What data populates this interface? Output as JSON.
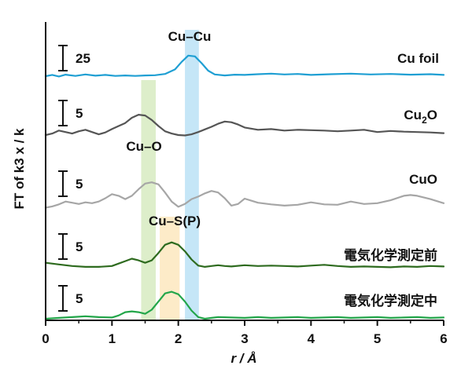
{
  "chart_data": {
    "type": "line",
    "xlabel": "r / Å",
    "ylabel": "FT of k3 x / k",
    "xlim": [
      0,
      6
    ],
    "x_ticks": [
      "0",
      "1",
      "2",
      "3",
      "4",
      "5",
      "6"
    ],
    "bands": [
      {
        "label": "Cu–O",
        "range": [
          1.44,
          1.66
        ],
        "color": "#d9ecc4"
      },
      {
        "label": "Cu–Cu",
        "range": [
          2.1,
          2.31
        ],
        "color": "#bfe3f6"
      },
      {
        "label": "Cu–S(P)",
        "range": [
          1.72,
          2.02
        ],
        "color": "#fde9c2"
      }
    ],
    "series": [
      {
        "name": "Cu foil",
        "color": "#1f9fd3",
        "scale_bar": "25",
        "x": [
          0.0,
          0.1,
          0.2,
          0.3,
          0.45,
          0.6,
          0.75,
          0.9,
          1.05,
          1.2,
          1.35,
          1.5,
          1.65,
          1.8,
          1.95,
          2.05,
          2.15,
          2.25,
          2.35,
          2.45,
          2.55,
          2.7,
          2.85,
          3.0,
          3.2,
          3.4,
          3.6,
          3.8,
          4.0,
          4.3,
          4.6,
          4.9,
          5.2,
          5.5,
          5.8,
          6.0
        ],
        "y": [
          0.3,
          0.8,
          0.2,
          0.9,
          0.4,
          1.0,
          0.5,
          0.8,
          0.4,
          0.6,
          0.4,
          0.6,
          0.7,
          1.2,
          3.0,
          6.0,
          8.5,
          8.2,
          5.5,
          2.5,
          1.0,
          0.6,
          0.9,
          0.8,
          1.1,
          1.3,
          1.0,
          1.2,
          0.8,
          1.1,
          1.3,
          1.0,
          1.2,
          0.9,
          1.1,
          0.8
        ]
      },
      {
        "name": "Cu2O",
        "color": "#555555",
        "scale_bar": "5",
        "x": [
          0.0,
          0.1,
          0.2,
          0.3,
          0.4,
          0.5,
          0.6,
          0.7,
          0.8,
          0.9,
          1.0,
          1.1,
          1.2,
          1.3,
          1.4,
          1.5,
          1.6,
          1.7,
          1.8,
          1.9,
          2.0,
          2.1,
          2.2,
          2.3,
          2.4,
          2.5,
          2.6,
          2.7,
          2.8,
          2.9,
          3.0,
          3.2,
          3.4,
          3.6,
          3.8,
          4.0,
          4.2,
          4.4,
          4.6,
          4.8,
          5.0,
          5.2,
          5.4,
          5.6,
          5.8,
          6.0
        ],
        "y": [
          0.2,
          0.6,
          1.4,
          1.0,
          0.6,
          1.2,
          1.6,
          1.0,
          0.4,
          0.9,
          1.8,
          2.6,
          3.4,
          4.8,
          5.6,
          5.4,
          4.2,
          2.6,
          1.2,
          0.6,
          0.2,
          0.1,
          0.4,
          1.0,
          1.7,
          2.4,
          3.2,
          3.8,
          3.6,
          3.0,
          2.2,
          1.6,
          1.8,
          1.4,
          1.6,
          1.5,
          1.4,
          1.2,
          1.4,
          1.6,
          1.0,
          1.3,
          1.1,
          1.0,
          0.9,
          0.7
        ]
      },
      {
        "name": "CuO",
        "color": "#a6a6a6",
        "scale_bar": "5",
        "x": [
          0.0,
          0.1,
          0.2,
          0.3,
          0.4,
          0.5,
          0.6,
          0.7,
          0.8,
          0.9,
          1.0,
          1.1,
          1.2,
          1.3,
          1.4,
          1.5,
          1.6,
          1.7,
          1.8,
          1.9,
          2.0,
          2.1,
          2.2,
          2.3,
          2.4,
          2.5,
          2.6,
          2.7,
          2.8,
          2.9,
          3.0,
          3.1,
          3.2,
          3.4,
          3.6,
          3.8,
          4.0,
          4.2,
          4.4,
          4.6,
          4.8,
          5.0,
          5.2,
          5.4,
          5.5,
          5.6,
          5.8,
          6.0
        ],
        "y": [
          0.1,
          0.4,
          0.9,
          1.6,
          1.3,
          1.0,
          1.4,
          1.2,
          1.6,
          2.4,
          3.4,
          3.0,
          2.2,
          3.0,
          4.6,
          6.0,
          6.3,
          5.8,
          3.8,
          1.6,
          0.3,
          1.0,
          2.2,
          2.8,
          3.6,
          4.2,
          3.8,
          2.4,
          0.6,
          1.0,
          2.3,
          1.8,
          1.3,
          0.9,
          0.6,
          0.8,
          1.4,
          0.9,
          0.8,
          1.6,
          1.0,
          1.2,
          1.9,
          3.0,
          3.2,
          3.0,
          2.2,
          1.2
        ]
      },
      {
        "name": "電気化学測定前",
        "color": "#2e6b1f",
        "scale_bar": "5",
        "x": [
          0.0,
          0.2,
          0.4,
          0.6,
          0.8,
          1.0,
          1.1,
          1.2,
          1.3,
          1.4,
          1.5,
          1.6,
          1.7,
          1.8,
          1.9,
          2.0,
          2.1,
          2.2,
          2.3,
          2.4,
          2.5,
          2.6,
          2.7,
          2.8,
          3.0,
          3.2,
          3.4,
          3.6,
          3.8,
          4.0,
          4.2,
          4.4,
          4.6,
          4.8,
          5.0,
          5.2,
          5.4,
          5.6,
          5.8,
          6.0
        ],
        "y": [
          1.6,
          1.2,
          0.8,
          0.6,
          0.6,
          0.8,
          1.4,
          2.0,
          2.6,
          2.2,
          1.6,
          2.2,
          4.0,
          6.0,
          6.6,
          6.0,
          4.4,
          2.4,
          0.9,
          0.6,
          0.8,
          1.0,
          0.8,
          0.7,
          1.0,
          0.8,
          0.9,
          0.8,
          0.7,
          0.9,
          1.1,
          0.8,
          0.6,
          0.7,
          0.6,
          0.5,
          0.7,
          0.6,
          0.8,
          0.7
        ]
      },
      {
        "name": "電気化学測定中",
        "color": "#23a64a",
        "scale_bar": "5",
        "x": [
          0.0,
          0.2,
          0.4,
          0.6,
          0.8,
          1.0,
          1.1,
          1.2,
          1.3,
          1.4,
          1.5,
          1.6,
          1.7,
          1.8,
          1.9,
          2.0,
          2.1,
          2.2,
          2.3,
          2.4,
          2.5,
          2.6,
          2.8,
          3.0,
          3.2,
          3.4,
          3.6,
          3.8,
          4.0,
          4.2,
          4.4,
          4.6,
          4.8,
          5.0,
          5.2,
          5.4,
          5.6,
          5.8,
          6.0
        ],
        "y": [
          0.2,
          0.4,
          0.6,
          0.8,
          0.6,
          0.5,
          1.0,
          1.8,
          2.0,
          1.8,
          1.4,
          2.4,
          4.4,
          6.4,
          6.8,
          6.2,
          4.4,
          2.2,
          0.6,
          0.2,
          0.4,
          0.6,
          0.5,
          0.4,
          0.6,
          0.4,
          0.5,
          0.6,
          0.4,
          0.5,
          0.6,
          0.4,
          0.5,
          0.6,
          0.4,
          0.5,
          0.6,
          0.4,
          0.5
        ]
      }
    ]
  }
}
